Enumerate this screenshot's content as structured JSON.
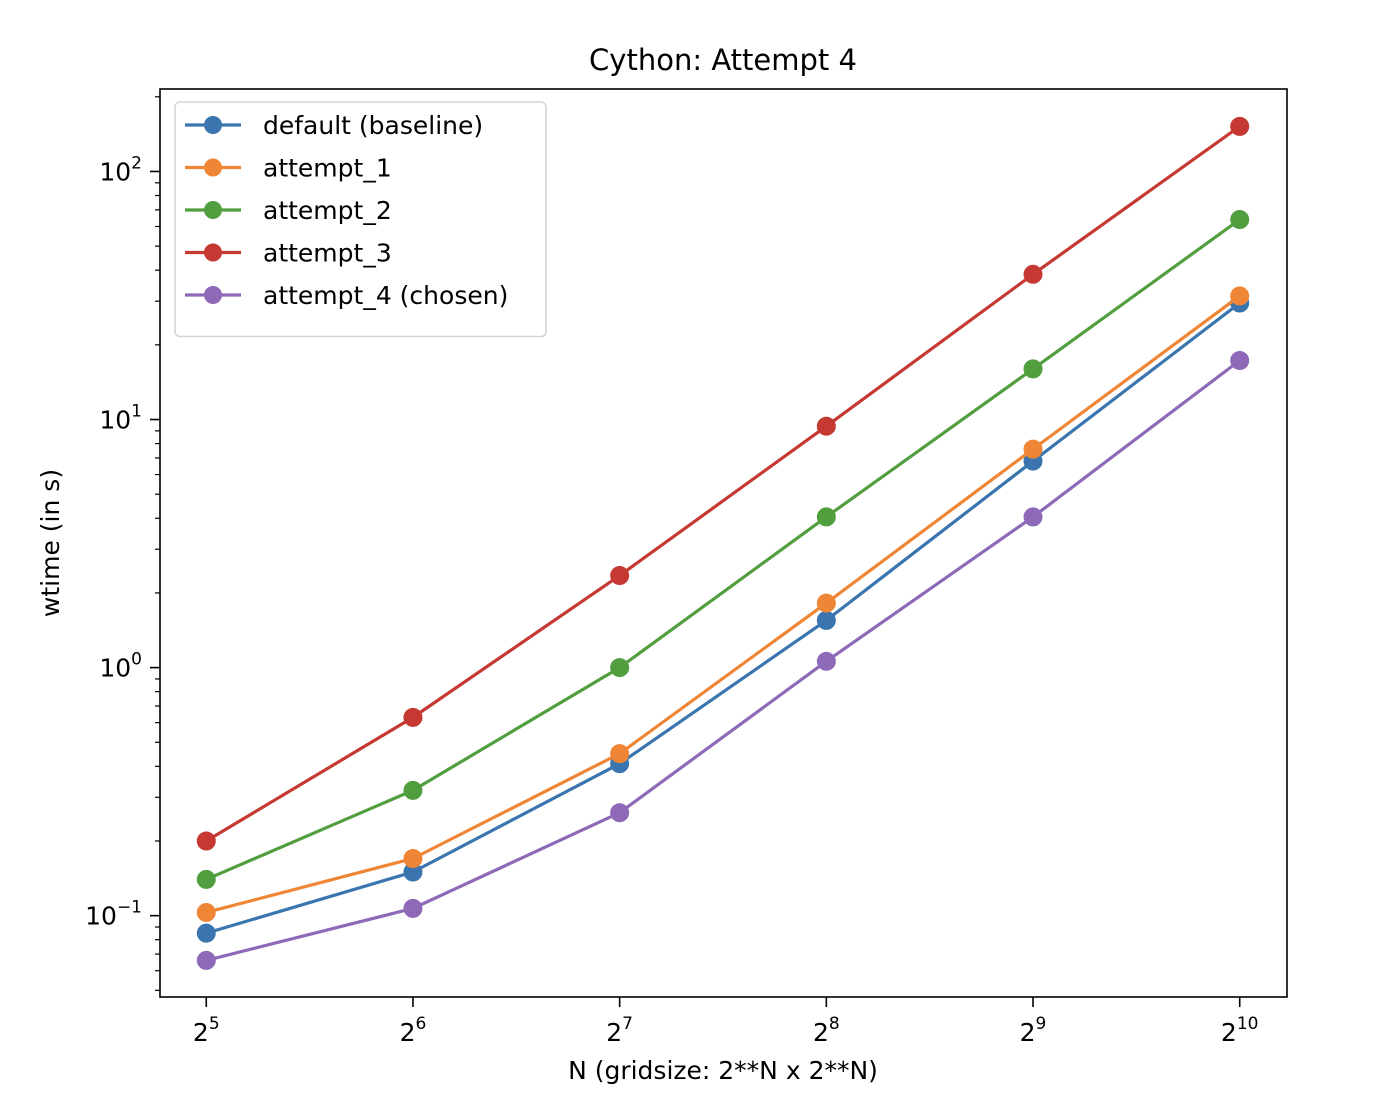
{
  "chart_data": {
    "type": "line",
    "title": "Cython: Attempt 4",
    "xlabel": "N (gridsize: 2**N x 2**N)",
    "ylabel": "wtime (in s)",
    "x_scale": "log2",
    "y_scale": "log10",
    "x": [
      32,
      64,
      128,
      256,
      512,
      1024
    ],
    "x_tick_labels": [
      {
        "base": "2",
        "exp": "5"
      },
      {
        "base": "2",
        "exp": "6"
      },
      {
        "base": "2",
        "exp": "7"
      },
      {
        "base": "2",
        "exp": "8"
      },
      {
        "base": "2",
        "exp": "9"
      },
      {
        "base": "2",
        "exp": "10"
      }
    ],
    "y_tick_labels": [
      {
        "value": 0.1,
        "base": "10",
        "exp": "−1"
      },
      {
        "value": 1,
        "base": "10",
        "exp": "0"
      },
      {
        "value": 10,
        "base": "10",
        "exp": "1"
      },
      {
        "value": 100,
        "base": "10",
        "exp": "2"
      }
    ],
    "xlim": [
      27.4,
      1200
    ],
    "ylim": [
      0.047,
      215
    ],
    "grid": false,
    "legend_position": "top-left",
    "series": [
      {
        "name": "default (baseline)",
        "color": "#3a75af",
        "values": [
          0.085,
          0.15,
          0.41,
          1.55,
          6.8,
          29.5
        ]
      },
      {
        "name": "attempt_1",
        "color": "#ef8636",
        "values": [
          0.103,
          0.17,
          0.45,
          1.82,
          7.6,
          31.5
        ]
      },
      {
        "name": "attempt_2",
        "color": "#519e3e",
        "values": [
          0.14,
          0.32,
          1.0,
          4.05,
          16.0,
          64.0
        ]
      },
      {
        "name": "attempt_3",
        "color": "#c53932",
        "values": [
          0.2,
          0.63,
          2.35,
          9.4,
          38.5,
          152.0
        ]
      },
      {
        "name": "attempt_4 (chosen)",
        "color": "#8d69b8",
        "values": [
          0.066,
          0.107,
          0.26,
          1.06,
          4.05,
          17.3
        ]
      }
    ]
  }
}
